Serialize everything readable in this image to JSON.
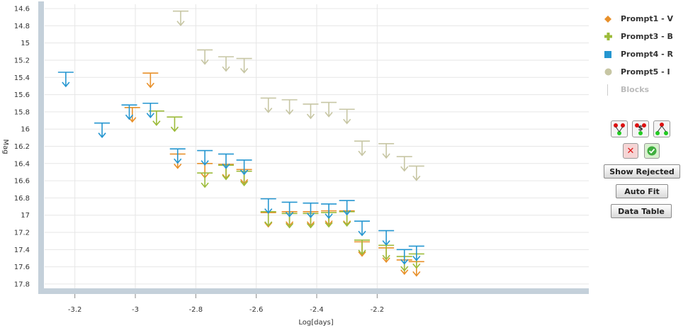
{
  "chart_data": {
    "type": "scatter",
    "xlabel": "Log[days]",
    "ylabel": "Mag",
    "xlim": [
      -3.3,
      -1.5
    ],
    "ylim": [
      17.85,
      14.55
    ],
    "x_ticks": [
      -3.2,
      -3,
      -2.8,
      -2.6,
      -2.4,
      -2.2
    ],
    "x_tick_labels": [
      "-3.2",
      "-3",
      "-2.8",
      "-2.6",
      "-2.4",
      "-2.2"
    ],
    "y_ticks": [
      14.6,
      14.8,
      15,
      15.2,
      15.4,
      15.6,
      15.8,
      16,
      16.2,
      16.4,
      16.6,
      16.8,
      17,
      17.2,
      17.4,
      17.6,
      17.8
    ],
    "y_tick_labels": [
      "14.6",
      "14.8",
      "15",
      "15.2",
      "15.4",
      "15.6",
      "15.8",
      "16",
      "16.2",
      "16.4",
      "16.6",
      "16.8",
      "17",
      "17.2",
      "17.4",
      "17.6",
      "17.8"
    ],
    "grid": true,
    "legend_position": "right",
    "marker": "upper-limit arrow",
    "series": [
      {
        "name": "Prompt1 - V",
        "color": "#e8902a",
        "points": [
          [
            -3.01,
            15.75
          ],
          [
            -2.95,
            15.35
          ],
          [
            -2.86,
            16.29
          ],
          [
            -2.77,
            16.4
          ],
          [
            -2.7,
            16.41
          ],
          [
            -2.64,
            16.47
          ],
          [
            -2.56,
            16.97
          ],
          [
            -2.49,
            16.96
          ],
          [
            -2.42,
            16.96
          ],
          [
            -2.36,
            16.95
          ],
          [
            -2.3,
            16.95
          ],
          [
            -2.25,
            17.31
          ],
          [
            -2.17,
            17.38
          ],
          [
            -2.11,
            17.52
          ],
          [
            -2.07,
            17.54
          ]
        ]
      },
      {
        "name": "Prompt3 - B",
        "color": "#9cbb3a",
        "points": [
          [
            -2.93,
            15.79
          ],
          [
            -2.87,
            15.86
          ],
          [
            -2.77,
            16.51
          ],
          [
            -2.7,
            16.42
          ],
          [
            -2.64,
            16.49
          ],
          [
            -2.56,
            16.96
          ],
          [
            -2.49,
            16.98
          ],
          [
            -2.42,
            16.98
          ],
          [
            -2.36,
            16.97
          ],
          [
            -2.3,
            16.96
          ],
          [
            -2.25,
            17.29
          ],
          [
            -2.17,
            17.35
          ],
          [
            -2.11,
            17.48
          ],
          [
            -2.07,
            17.45
          ]
        ]
      },
      {
        "name": "Prompt4 - R",
        "color": "#2596d0",
        "points": [
          [
            -3.23,
            15.34
          ],
          [
            -3.11,
            15.93
          ],
          [
            -3.02,
            15.72
          ],
          [
            -2.95,
            15.7
          ],
          [
            -2.86,
            16.23
          ],
          [
            -2.77,
            16.25
          ],
          [
            -2.7,
            16.29
          ],
          [
            -2.64,
            16.36
          ],
          [
            -2.56,
            16.81
          ],
          [
            -2.49,
            16.85
          ],
          [
            -2.42,
            16.86
          ],
          [
            -2.36,
            16.87
          ],
          [
            -2.3,
            16.83
          ],
          [
            -2.25,
            17.07
          ],
          [
            -2.17,
            17.18
          ],
          [
            -2.11,
            17.4
          ],
          [
            -2.07,
            17.36
          ]
        ]
      },
      {
        "name": "Prompt5 - I",
        "color": "#c7c6a4",
        "points": [
          [
            -2.85,
            14.63
          ],
          [
            -2.77,
            15.08
          ],
          [
            -2.7,
            15.16
          ],
          [
            -2.64,
            15.18
          ],
          [
            -2.56,
            15.64
          ],
          [
            -2.49,
            15.66
          ],
          [
            -2.42,
            15.71
          ],
          [
            -2.36,
            15.69
          ],
          [
            -2.3,
            15.77
          ],
          [
            -2.25,
            16.14
          ],
          [
            -2.17,
            16.17
          ],
          [
            -2.11,
            16.32
          ],
          [
            -2.07,
            16.43
          ]
        ]
      }
    ]
  },
  "legend": {
    "items": [
      {
        "label": "Prompt1 - V",
        "color": "#e8902a",
        "icon": "diamond"
      },
      {
        "label": "Prompt3 - B",
        "color": "#9cbb3a",
        "icon": "plus"
      },
      {
        "label": "Prompt4 - R",
        "color": "#2596d0",
        "icon": "square"
      },
      {
        "label": "Prompt5 - I",
        "color": "#c7c6a4",
        "icon": "circle"
      },
      {
        "label": "Blocks",
        "color": "#cccccc",
        "icon": "line"
      }
    ]
  },
  "controls": {
    "mode_icons": [
      "fit-mode-1-icon",
      "fit-mode-2-icon",
      "fit-mode-3-icon"
    ],
    "reject_icon": "reject-x-icon",
    "accept_icon": "accept-check-icon",
    "show_rejected": "Show Rejected",
    "auto_fit": "Auto Fit",
    "data_table": "Data Table"
  }
}
